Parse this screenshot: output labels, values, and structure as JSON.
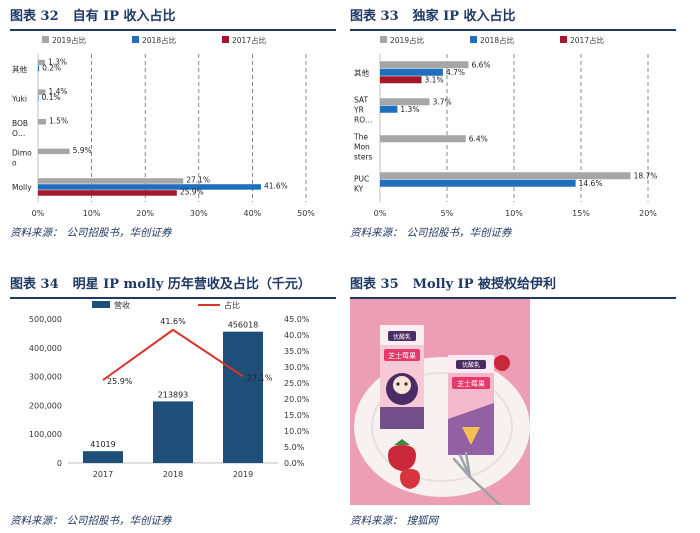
{
  "panels": {
    "p32": {
      "fig": "图表 32",
      "title": "自有 IP 收入占比",
      "source_label": "资料来源：",
      "source": "公司招股书，华创证券"
    },
    "p33": {
      "fig": "图表 33",
      "title": "独家 IP 收入占比",
      "source_label": "资料来源：",
      "source": "公司招股书，华创证券"
    },
    "p34": {
      "fig": "图表 34",
      "title": "明星 IP molly 历年营收及占比（千元）",
      "source_label": "资料来源：",
      "source": "公司招股书，华创证券"
    },
    "p35": {
      "fig": "图表 35",
      "title": "Molly IP 被授权给伊利",
      "source_label": "资料来源：",
      "source": "搜狐网",
      "photo": {
        "brand": "优酸乳",
        "product": "芝士莓果",
        "colors": {
          "background": "#ec9fb4",
          "plate": "#f7f2ef",
          "box": "#f6c9d6",
          "box_dark": "#4a2b63",
          "berry": "#c9283a"
        }
      }
    }
  },
  "chart_data": [
    {
      "type": "bar",
      "orientation": "horizontal",
      "categories": [
        "其他",
        "Yuki",
        "BOBO…",
        "Dimoo",
        "Molly"
      ],
      "category_lines": [
        [
          "其他"
        ],
        [
          "Yuki"
        ],
        [
          "BOB",
          "O…"
        ],
        [
          "Dimo",
          "o"
        ],
        [
          "Molly"
        ]
      ],
      "series": [
        {
          "name": "2019占比",
          "values": [
            1.3,
            1.4,
            1.5,
            5.9,
            27.1
          ],
          "labels": [
            "1.3%",
            "1.4%",
            "1.5%",
            "5.9%",
            "27.1%"
          ],
          "color": "#a6a6a6"
        },
        {
          "name": "2018占比",
          "values": [
            0.2,
            0.1,
            null,
            null,
            41.6
          ],
          "labels": [
            "0.2%",
            "0.1%",
            "",
            "",
            "41.6%"
          ],
          "color": "#1f6fbf"
        },
        {
          "name": "2017占比",
          "values": [
            null,
            null,
            null,
            null,
            25.9
          ],
          "labels": [
            "",
            "",
            "",
            "",
            "25.9%"
          ],
          "color": "#a5172a"
        }
      ],
      "xlim": [
        0,
        50
      ],
      "xticks": [
        0,
        10,
        20,
        30,
        40,
        50
      ],
      "xtick_labels": [
        "0%",
        "10%",
        "20%",
        "30%",
        "40%",
        "50%"
      ],
      "grid": "vertical-dashed",
      "legend": "top"
    },
    {
      "type": "bar",
      "orientation": "horizontal",
      "categories": [
        "其他",
        "SAT YR RO…",
        "The Monsters",
        "PUCKY"
      ],
      "category_lines": [
        [
          "其他"
        ],
        [
          "SAT",
          "YR",
          "RO…"
        ],
        [
          "The",
          "Mon",
          "sters"
        ],
        [
          "PUC",
          "KY"
        ]
      ],
      "series": [
        {
          "name": "2019占比",
          "values": [
            6.6,
            3.7,
            6.4,
            18.7
          ],
          "labels": [
            "6.6%",
            "3.7%",
            "6.4%",
            "18.7%"
          ],
          "color": "#a6a6a6"
        },
        {
          "name": "2018占比",
          "values": [
            4.7,
            1.3,
            null,
            14.6
          ],
          "labels": [
            "4.7%",
            "1.3%",
            "",
            "14.6%"
          ],
          "color": "#1f6fbf"
        },
        {
          "name": "2017占比",
          "values": [
            3.1,
            null,
            null,
            null
          ],
          "labels": [
            "3.1%",
            "",
            "",
            ""
          ],
          "color": "#a5172a"
        }
      ],
      "xlim": [
        0,
        20
      ],
      "xticks": [
        0,
        5,
        10,
        15,
        20
      ],
      "xtick_labels": [
        "0%",
        "5%",
        "10%",
        "15%",
        "20%"
      ],
      "grid": "vertical-dashed",
      "legend": "top"
    },
    {
      "type": "bar+line",
      "categories": [
        "2017",
        "2018",
        "2019"
      ],
      "bar_series": {
        "name": "营收",
        "values": [
          41019,
          213893,
          456018
        ],
        "labels": [
          "41019",
          "213893",
          "456018"
        ],
        "color": "#1f4e79"
      },
      "line_series": {
        "name": "占比",
        "values": [
          25.9,
          41.6,
          27.1
        ],
        "labels": [
          "25.9%",
          "41.6%",
          "27.1%"
        ],
        "color": "#d9342b"
      },
      "ylim_left": [
        0,
        500000
      ],
      "yticks_left": [
        "0",
        "100,000",
        "200,000",
        "300,000",
        "400,000",
        "500,000"
      ],
      "ylim_right": [
        0,
        45
      ],
      "yticks_right": [
        "0.0%",
        "5.0%",
        "10.0%",
        "15.0%",
        "20.0%",
        "25.0%",
        "30.0%",
        "35.0%",
        "40.0%",
        "45.0%"
      ],
      "legend": "top"
    }
  ]
}
